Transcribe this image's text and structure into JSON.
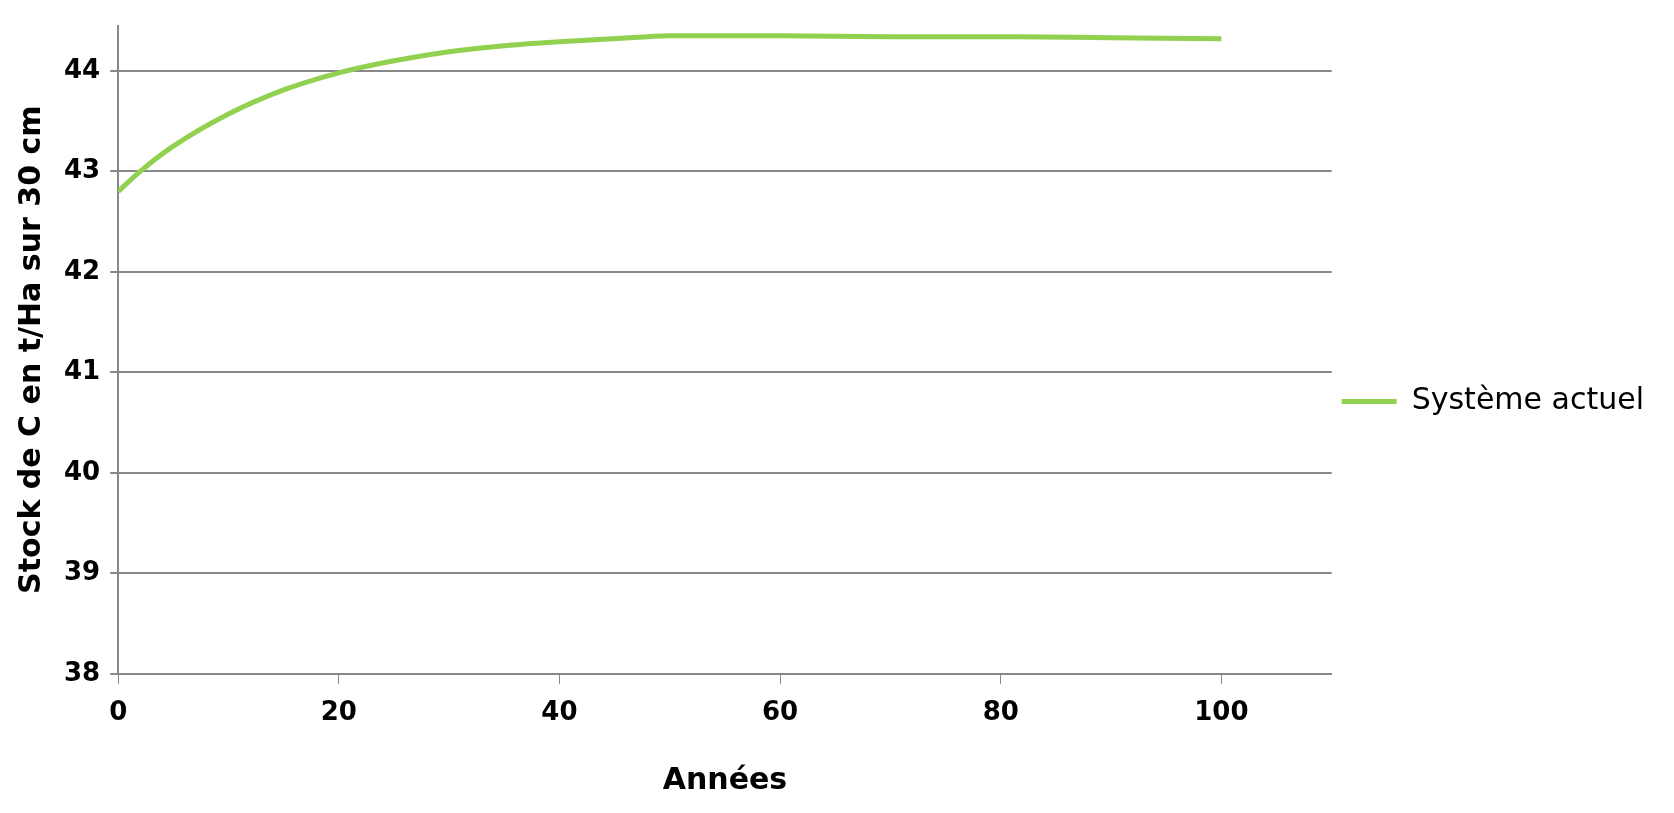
{
  "chart_data": {
    "type": "line",
    "xlabel": "Années",
    "ylabel": "Stock de C en t/Ha sur 30 cm",
    "x": [
      0,
      2,
      5,
      10,
      15,
      20,
      25,
      30,
      35,
      40,
      48,
      50,
      60,
      70,
      80,
      90,
      100
    ],
    "series": [
      {
        "name": "Système actuel",
        "color": "#92d050",
        "values": [
          42.8,
          43.0,
          43.25,
          43.57,
          43.81,
          43.98,
          44.1,
          44.19,
          44.25,
          44.29,
          44.34,
          44.35,
          44.35,
          44.34,
          44.34,
          44.33,
          44.32
        ]
      }
    ],
    "xlim": [
      0,
      110
    ],
    "xticks": [
      0,
      20,
      40,
      60,
      80,
      100
    ],
    "ylim": [
      38,
      44.45
    ],
    "yticks": [
      38,
      39,
      40,
      41,
      42,
      43,
      44
    ],
    "grid": "y",
    "legend": "right",
    "marker": "none",
    "line_style": "solid"
  }
}
